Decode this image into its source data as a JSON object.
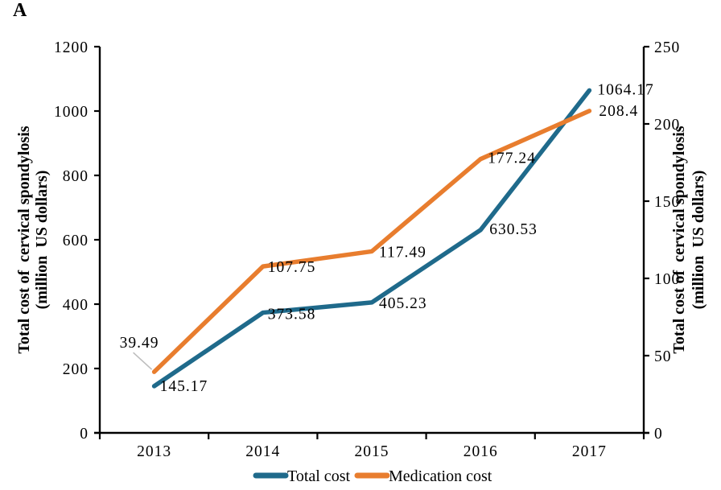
{
  "panel_label": "A",
  "chart_data": {
    "type": "line",
    "title": "",
    "categories": [
      "2013",
      "2014",
      "2015",
      "2016",
      "2017"
    ],
    "series": [
      {
        "name": "Total cost",
        "axis": "left",
        "color": "#1f6a8b",
        "values": [
          145.17,
          373.58,
          405.23,
          630.53,
          1064.17
        ],
        "point_labels": [
          "145.17",
          "373.58",
          "405.23",
          "630.53",
          "1064.17"
        ]
      },
      {
        "name": "Medication cost",
        "axis": "right",
        "color": "#e87d2e",
        "values": [
          39.49,
          107.75,
          117.49,
          177.24,
          208.4
        ],
        "point_labels": [
          "39.49",
          "107.75",
          "117.49",
          "177.24",
          "208.4"
        ]
      }
    ],
    "left_axis": {
      "label_line1": "Total cost of  cervical spondylosis",
      "label_line2": "(million  US dollars)",
      "min": 0,
      "max": 1200,
      "step": 200,
      "ticks": [
        "0",
        "200",
        "400",
        "600",
        "800",
        "1000",
        "1200"
      ]
    },
    "right_axis": {
      "label_line1": "Total cost of  cervical spondylosis",
      "label_line2": "(million  US dollars)",
      "min": 0,
      "max": 250,
      "step": 50,
      "ticks": [
        "0",
        "50",
        "100",
        "150",
        "200",
        "250"
      ]
    },
    "x_axis": {
      "ticks": [
        "2013",
        "2014",
        "2015",
        "2016",
        "2017"
      ]
    },
    "legend": {
      "position": "bottom-center",
      "items": [
        {
          "label": "Total cost",
          "color": "#1f6a8b"
        },
        {
          "label": "Medication cost",
          "color": "#e87d2e"
        }
      ]
    },
    "grid": false,
    "annotation": {
      "leader_line_color": "#bdbdbd",
      "axis_color": "#000000"
    }
  }
}
